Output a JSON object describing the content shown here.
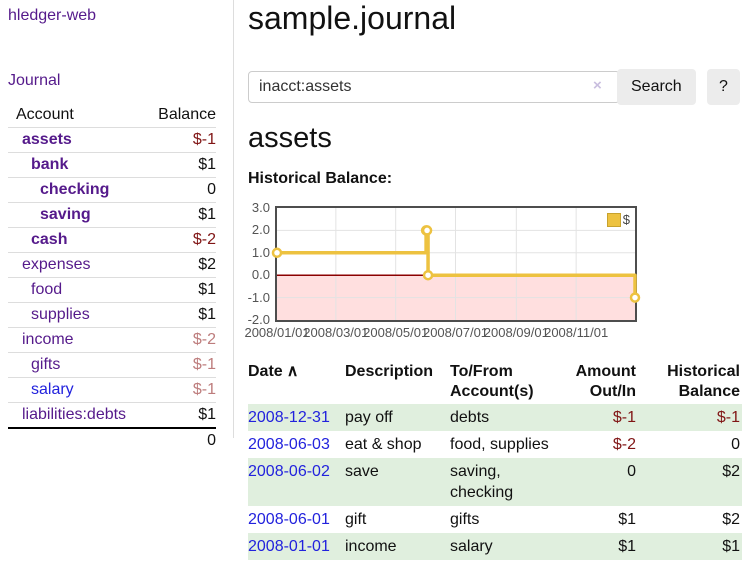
{
  "app": {
    "brand": "hledger-web",
    "nav_journal": "Journal"
  },
  "sidebar": {
    "headers": {
      "account": "Account",
      "balance": "Balance"
    },
    "accounts": [
      {
        "name": "assets",
        "balance": "$-1"
      },
      {
        "name": "bank",
        "balance": "$1"
      },
      {
        "name": "checking",
        "balance": "0"
      },
      {
        "name": "saving",
        "balance": "$1"
      },
      {
        "name": "cash",
        "balance": "$-2"
      },
      {
        "name": "expenses",
        "balance": "$2"
      },
      {
        "name": "food",
        "balance": "$1"
      },
      {
        "name": "supplies",
        "balance": "$1"
      },
      {
        "name": "income",
        "balance": "$-2"
      },
      {
        "name": "gifts",
        "balance": "$-1"
      },
      {
        "name": "salary",
        "balance": "$-1"
      },
      {
        "name": "liabilities:debts",
        "balance": "$1"
      }
    ],
    "total": "0"
  },
  "main": {
    "title": "sample.journal",
    "search": {
      "value": "inacct:assets",
      "clear_icon": "×",
      "button": "Search",
      "help_button": "?"
    },
    "heading": "assets",
    "chart_label": "Historical Balance:"
  },
  "chart_data": {
    "type": "line",
    "step": true,
    "title": "Historical Balance",
    "legend": "$",
    "legend_position": "top-right",
    "grid": true,
    "ylim": [
      -2,
      3
    ],
    "y_ticks": [
      "3.0",
      "2.0",
      "1.0",
      "0.0",
      "-1.0",
      "-2.0"
    ],
    "x_ticks": [
      "2008/01/01",
      "2008/03/01",
      "2008/05/01",
      "2008/07/01",
      "2008/09/01",
      "2008/11/01"
    ],
    "series": [
      {
        "name": "$",
        "color": "#EDC240",
        "points": [
          {
            "date": "2008-01-01",
            "value": 1
          },
          {
            "date": "2008-06-01",
            "value": 2
          },
          {
            "date": "2008-06-02",
            "value": 2
          },
          {
            "date": "2008-06-03",
            "value": 0
          },
          {
            "date": "2008-12-31",
            "value": -1
          }
        ]
      }
    ],
    "negative_region_color": "#ffdfdf",
    "zero_line_color": "#8b0000",
    "grid_color": "#e3e3e3",
    "border_color": "#4d4d4d"
  },
  "register": {
    "columns": {
      "date": "Date",
      "description": "Description",
      "account": "To/From Account(s)",
      "amount": "Amount Out/In",
      "balance": "Historical Balance"
    },
    "sort_icon": "∧",
    "rows": [
      {
        "date": "2008-12-31",
        "description": "pay off",
        "accounts": "debts",
        "amount": "$-1",
        "balance": "$-1"
      },
      {
        "date": "2008-06-03",
        "description": "eat & shop",
        "accounts": "food, supplies",
        "amount": "$-2",
        "balance": "0"
      },
      {
        "date": "2008-06-02",
        "description": "save",
        "accounts": "saving, checking",
        "amount": "0",
        "balance": "$2"
      },
      {
        "date": "2008-06-01",
        "description": "gift",
        "accounts": "gifts",
        "amount": "$1",
        "balance": "$2"
      },
      {
        "date": "2008-01-01",
        "description": "income",
        "accounts": "salary",
        "amount": "$1",
        "balance": "$1"
      }
    ]
  },
  "colors": {
    "link_purple": "#551a8b",
    "link_blue": "#2222dd",
    "negative_strong": "#801515",
    "negative_soft": "#bd7c7c",
    "row_green": "#e0efde",
    "chart_gold": "#EDC240",
    "button_bg": "#ececec"
  }
}
